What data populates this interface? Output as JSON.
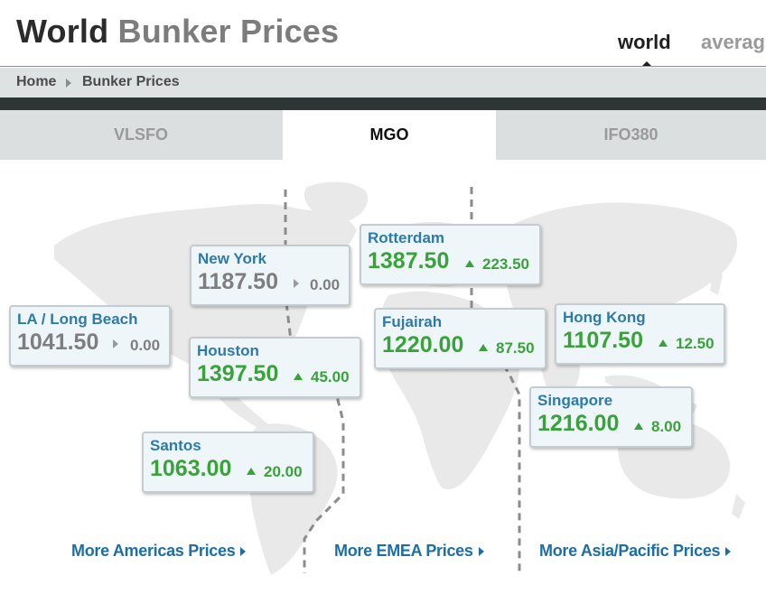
{
  "header": {
    "title_part1": "World",
    "title_part2": "Bunker Prices",
    "view_tabs": [
      {
        "label": "world",
        "active": true
      },
      {
        "label": "averag",
        "active": false
      }
    ]
  },
  "breadcrumb": {
    "home": "Home",
    "current": "Bunker Prices"
  },
  "fuel_tabs": [
    {
      "label": "VLSFO",
      "active": false
    },
    {
      "label": "MGO",
      "active": true
    },
    {
      "label": "IFO380",
      "active": false
    }
  ],
  "ports": [
    {
      "id": "new-york",
      "city": "New York",
      "price": "1187.50",
      "change": "0.00",
      "direction": "flat"
    },
    {
      "id": "rotterdam",
      "city": "Rotterdam",
      "price": "1387.50",
      "change": "223.50",
      "direction": "up"
    },
    {
      "id": "la-long-beach",
      "city": "LA / Long Beach",
      "price": "1041.50",
      "change": "0.00",
      "direction": "flat"
    },
    {
      "id": "fujairah",
      "city": "Fujairah",
      "price": "1220.00",
      "change": "87.50",
      "direction": "up"
    },
    {
      "id": "hong-kong",
      "city": "Hong Kong",
      "price": "1107.50",
      "change": "12.50",
      "direction": "up"
    },
    {
      "id": "houston",
      "city": "Houston",
      "price": "1397.50",
      "change": "45.00",
      "direction": "up"
    },
    {
      "id": "singapore",
      "city": "Singapore",
      "price": "1216.00",
      "change": "8.00",
      "direction": "up"
    },
    {
      "id": "santos",
      "city": "Santos",
      "price": "1063.00",
      "change": "20.00",
      "direction": "up"
    }
  ],
  "more_links": {
    "americas": "More Americas Prices",
    "emea": "More EMEA Prices",
    "asia": "More Asia/Pacific Prices"
  },
  "colors": {
    "up": "#3aa23a",
    "flat": "#7e7e7e",
    "city": "#2e7aa8",
    "link": "#1c6fa6",
    "dark_bar": "#2e3535"
  }
}
